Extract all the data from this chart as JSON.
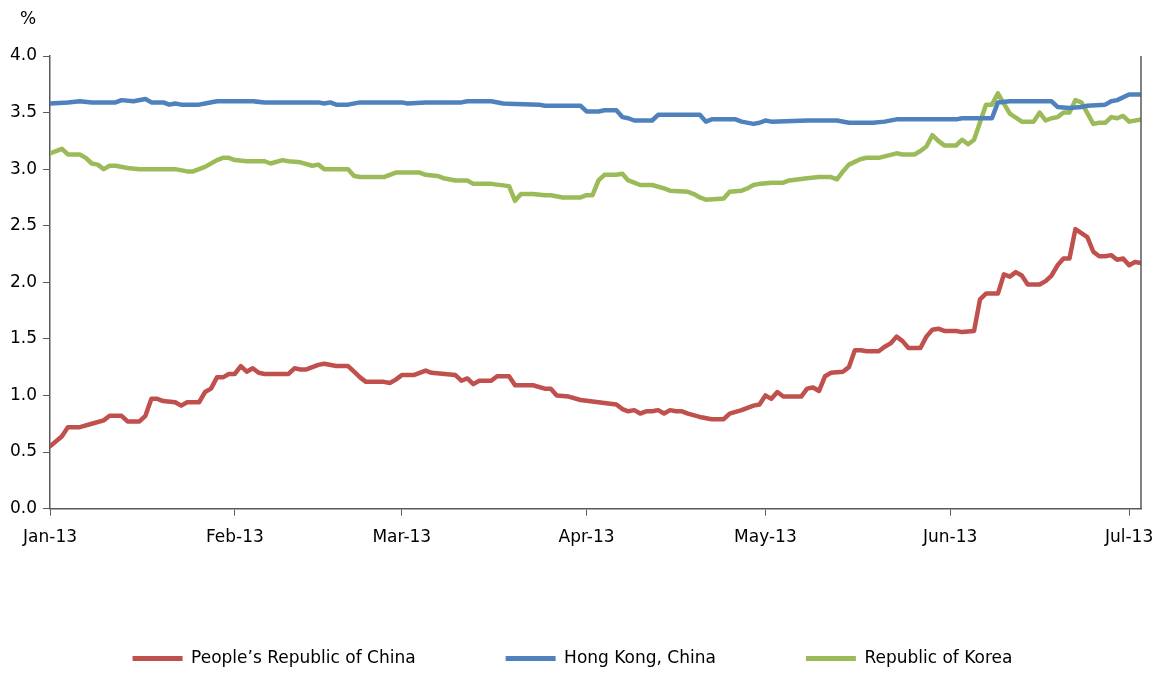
{
  "chart_data": {
    "type": "line",
    "ylabel": "%",
    "xlim": [
      "2013-01-01",
      "2013-07-03"
    ],
    "xticks": [
      {
        "value": "2013-01",
        "label": "Jan-13"
      },
      {
        "value": "2013-02",
        "label": "Feb-13"
      },
      {
        "value": "2013-03",
        "label": "Mar-13"
      },
      {
        "value": "2013-04",
        "label": "Apr-13"
      },
      {
        "value": "2013-05",
        "label": "May-13"
      },
      {
        "value": "2013-06",
        "label": "Jun-13"
      },
      {
        "value": "2013-07",
        "label": "Jul-13"
      }
    ],
    "ylim": [
      0,
      4
    ],
    "yticks": [
      {
        "value": 0,
        "label": "0.0"
      },
      {
        "value": 0.5,
        "label": "0.5"
      },
      {
        "value": 1,
        "label": "1.0"
      },
      {
        "value": 1.5,
        "label": "1.5"
      },
      {
        "value": 2,
        "label": "2.0"
      },
      {
        "value": 2.5,
        "label": "2.5"
      },
      {
        "value": 3,
        "label": "3.0"
      },
      {
        "value": 3.5,
        "label": "3.5"
      },
      {
        "value": 4,
        "label": "4.0"
      }
    ],
    "grid": false,
    "legend": "bottom",
    "marker": "none",
    "line_style": "solid",
    "series": [
      {
        "name": "People’s Republic of China",
        "color": "#c0504d",
        "x": [
          "2013-01-01",
          "2013-01-03",
          "2013-01-04",
          "2013-01-06",
          "2013-01-08",
          "2013-01-10",
          "2013-01-11",
          "2013-01-13",
          "2013-01-14",
          "2013-01-16",
          "2013-01-17",
          "2013-01-18",
          "2013-01-19",
          "2013-01-20",
          "2013-01-22",
          "2013-01-23",
          "2013-01-24",
          "2013-01-26",
          "2013-01-27",
          "2013-01-28",
          "2013-01-29",
          "2013-01-30",
          "2013-01-31",
          "2013-02-01",
          "2013-02-02",
          "2013-02-03",
          "2013-02-04",
          "2013-02-05",
          "2013-02-06",
          "2013-02-10",
          "2013-02-11",
          "2013-02-12",
          "2013-02-13",
          "2013-02-15",
          "2013-02-16",
          "2013-02-18",
          "2013-02-20",
          "2013-02-21",
          "2013-02-22",
          "2013-02-23",
          "2013-02-26",
          "2013-02-27",
          "2013-02-28",
          "2013-03-01",
          "2013-03-03",
          "2013-03-05",
          "2013-03-06",
          "2013-03-10",
          "2013-03-11",
          "2013-03-12",
          "2013-03-13",
          "2013-03-14",
          "2013-03-16",
          "2013-03-17",
          "2013-03-19",
          "2013-03-20",
          "2013-03-23",
          "2013-03-25",
          "2013-03-26",
          "2013-03-27",
          "2013-03-29",
          "2013-03-31",
          "2013-04-03",
          "2013-04-06",
          "2013-04-07",
          "2013-04-08",
          "2013-04-09",
          "2013-04-10",
          "2013-04-11",
          "2013-04-12",
          "2013-04-13",
          "2013-04-14",
          "2013-04-15",
          "2013-04-16",
          "2013-04-17",
          "2013-04-18",
          "2013-04-20",
          "2013-04-22",
          "2013-04-24",
          "2013-04-25",
          "2013-04-27",
          "2013-04-28",
          "2013-04-29",
          "2013-04-30",
          "2013-05-01",
          "2013-05-02",
          "2013-05-03",
          "2013-05-04",
          "2013-05-07",
          "2013-05-08",
          "2013-05-09",
          "2013-05-10",
          "2013-05-11",
          "2013-05-12",
          "2013-05-14",
          "2013-05-15",
          "2013-05-16",
          "2013-05-17",
          "2013-05-18",
          "2013-05-20",
          "2013-05-21",
          "2013-05-22",
          "2013-05-23",
          "2013-05-24",
          "2013-05-25",
          "2013-05-27",
          "2013-05-28",
          "2013-05-29",
          "2013-05-30",
          "2013-05-31",
          "2013-06-02",
          "2013-06-03",
          "2013-06-05",
          "2013-06-06",
          "2013-06-07",
          "2013-06-09",
          "2013-06-10",
          "2013-06-11",
          "2013-06-12",
          "2013-06-13",
          "2013-06-14",
          "2013-06-16",
          "2013-06-17",
          "2013-06-18",
          "2013-06-19",
          "2013-06-20",
          "2013-06-21",
          "2013-06-22",
          "2013-06-24",
          "2013-06-25",
          "2013-06-26",
          "2013-06-27",
          "2013-06-28",
          "2013-06-29",
          "2013-06-30",
          "2013-07-01",
          "2013-07-02",
          "2013-07-03"
        ],
        "values": [
          0.55,
          0.64,
          0.72,
          0.72,
          0.75,
          0.78,
          0.82,
          0.82,
          0.77,
          0.77,
          0.82,
          0.97,
          0.97,
          0.95,
          0.94,
          0.91,
          0.94,
          0.94,
          1.03,
          1.06,
          1.16,
          1.16,
          1.19,
          1.19,
          1.26,
          1.21,
          1.24,
          1.2,
          1.19,
          1.19,
          1.24,
          1.23,
          1.23,
          1.27,
          1.28,
          1.26,
          1.26,
          1.21,
          1.16,
          1.12,
          1.12,
          1.11,
          1.14,
          1.18,
          1.18,
          1.22,
          1.2,
          1.18,
          1.13,
          1.15,
          1.1,
          1.13,
          1.13,
          1.17,
          1.17,
          1.09,
          1.09,
          1.06,
          1.06,
          1.0,
          0.99,
          0.96,
          0.94,
          0.92,
          0.88,
          0.86,
          0.87,
          0.84,
          0.86,
          0.86,
          0.87,
          0.84,
          0.87,
          0.86,
          0.86,
          0.84,
          0.81,
          0.79,
          0.79,
          0.84,
          0.87,
          0.89,
          0.91,
          0.92,
          1.0,
          0.97,
          1.03,
          0.99,
          0.99,
          1.06,
          1.07,
          1.04,
          1.17,
          1.2,
          1.21,
          1.25,
          1.4,
          1.4,
          1.39,
          1.39,
          1.43,
          1.46,
          1.52,
          1.48,
          1.42,
          1.42,
          1.52,
          1.58,
          1.59,
          1.57,
          1.57,
          1.56,
          1.57,
          1.85,
          1.9,
          1.9,
          2.07,
          2.05,
          2.09,
          2.06,
          1.98,
          1.98,
          2.01,
          2.06,
          2.15,
          2.21,
          2.21,
          2.47,
          2.4,
          2.27,
          2.23,
          2.23,
          2.24,
          2.2,
          2.21,
          2.15,
          2.18,
          2.17
        ]
      },
      {
        "name": "Hong Kong, China",
        "color": "#4f81bd",
        "x": [
          "2013-01-01",
          "2013-01-04",
          "2013-01-06",
          "2013-01-08",
          "2013-01-12",
          "2013-01-13",
          "2013-01-15",
          "2013-01-17",
          "2013-01-18",
          "2013-01-20",
          "2013-01-21",
          "2013-01-22",
          "2013-01-23",
          "2013-01-26",
          "2013-01-27",
          "2013-01-29",
          "2013-02-04",
          "2013-02-06",
          "2013-02-15",
          "2013-02-16",
          "2013-02-17",
          "2013-02-18",
          "2013-02-20",
          "2013-02-22",
          "2013-03-01",
          "2013-03-02",
          "2013-03-05",
          "2013-03-11",
          "2013-03-12",
          "2013-03-16",
          "2013-03-18",
          "2013-03-24",
          "2013-03-25",
          "2013-03-31",
          "2013-04-01",
          "2013-04-03",
          "2013-04-04",
          "2013-04-06",
          "2013-04-07",
          "2013-04-08",
          "2013-04-09",
          "2013-04-12",
          "2013-04-13",
          "2013-04-20",
          "2013-04-21",
          "2013-04-22",
          "2013-04-26",
          "2013-04-27",
          "2013-04-29",
          "2013-04-30",
          "2013-05-01",
          "2013-05-02",
          "2013-05-08",
          "2013-05-13",
          "2013-05-15",
          "2013-05-19",
          "2013-05-21",
          "2013-05-23",
          "2013-06-02",
          "2013-06-03",
          "2013-06-08",
          "2013-06-09",
          "2013-06-11",
          "2013-06-18",
          "2013-06-19",
          "2013-06-21",
          "2013-06-23",
          "2013-06-24",
          "2013-06-27",
          "2013-06-28",
          "2013-06-29",
          "2013-07-01",
          "2013-07-03"
        ],
        "values": [
          3.58,
          3.59,
          3.6,
          3.59,
          3.59,
          3.61,
          3.6,
          3.62,
          3.59,
          3.59,
          3.57,
          3.58,
          3.57,
          3.57,
          3.58,
          3.6,
          3.6,
          3.59,
          3.59,
          3.58,
          3.59,
          3.57,
          3.57,
          3.59,
          3.59,
          3.58,
          3.59,
          3.59,
          3.6,
          3.6,
          3.58,
          3.57,
          3.56,
          3.56,
          3.51,
          3.51,
          3.52,
          3.52,
          3.46,
          3.45,
          3.43,
          3.43,
          3.48,
          3.48,
          3.42,
          3.44,
          3.44,
          3.42,
          3.4,
          3.41,
          3.43,
          3.42,
          3.43,
          3.43,
          3.41,
          3.41,
          3.42,
          3.44,
          3.44,
          3.45,
          3.45,
          3.59,
          3.6,
          3.6,
          3.55,
          3.54,
          3.55,
          3.56,
          3.57,
          3.6,
          3.61,
          3.66,
          3.66
        ]
      },
      {
        "name": "Republic of Korea",
        "color": "#9bbb59",
        "x": [
          "2013-01-01",
          "2013-01-03",
          "2013-01-04",
          "2013-01-06",
          "2013-01-07",
          "2013-01-08",
          "2013-01-09",
          "2013-01-10",
          "2013-01-11",
          "2013-01-12",
          "2013-01-14",
          "2013-01-16",
          "2013-01-18",
          "2013-01-20",
          "2013-01-22",
          "2013-01-24",
          "2013-01-25",
          "2013-01-27",
          "2013-01-29",
          "2013-01-30",
          "2013-01-31",
          "2013-02-01",
          "2013-02-03",
          "2013-02-06",
          "2013-02-07",
          "2013-02-09",
          "2013-02-10",
          "2013-02-12",
          "2013-02-14",
          "2013-02-15",
          "2013-02-16",
          "2013-02-20",
          "2013-02-21",
          "2013-02-22",
          "2013-02-26",
          "2013-02-27",
          "2013-02-28",
          "2013-03-04",
          "2013-03-05",
          "2013-03-07",
          "2013-03-08",
          "2013-03-10",
          "2013-03-12",
          "2013-03-13",
          "2013-03-15",
          "2013-03-16",
          "2013-03-19",
          "2013-03-20",
          "2013-03-21",
          "2013-03-23",
          "2013-03-25",
          "2013-03-26",
          "2013-03-28",
          "2013-03-31",
          "2013-04-01",
          "2013-04-02",
          "2013-04-03",
          "2013-04-04",
          "2013-04-06",
          "2013-04-07",
          "2013-04-08",
          "2013-04-09",
          "2013-04-10",
          "2013-04-12",
          "2013-04-14",
          "2013-04-15",
          "2013-04-18",
          "2013-04-19",
          "2013-04-20",
          "2013-04-21",
          "2013-04-24",
          "2013-04-25",
          "2013-04-27",
          "2013-04-28",
          "2013-04-29",
          "2013-04-30",
          "2013-05-02",
          "2013-05-04",
          "2013-05-05",
          "2013-05-08",
          "2013-05-10",
          "2013-05-12",
          "2013-05-13",
          "2013-05-14",
          "2013-05-15",
          "2013-05-17",
          "2013-05-18",
          "2013-05-20",
          "2013-05-23",
          "2013-05-24",
          "2013-05-26",
          "2013-05-27",
          "2013-05-28",
          "2013-05-29",
          "2013-05-30",
          "2013-05-31",
          "2013-06-02",
          "2013-06-03",
          "2013-06-04",
          "2013-06-05",
          "2013-06-07",
          "2013-06-08",
          "2013-06-09",
          "2013-06-10",
          "2013-06-11",
          "2013-06-13",
          "2013-06-15",
          "2013-06-16",
          "2013-06-17",
          "2013-06-18",
          "2013-06-19",
          "2013-06-20",
          "2013-06-21",
          "2013-06-22",
          "2013-06-23",
          "2013-06-25",
          "2013-06-26",
          "2013-06-27",
          "2013-06-28",
          "2013-06-29",
          "2013-06-30",
          "2013-07-01",
          "2013-07-03"
        ],
        "values": [
          3.14,
          3.18,
          3.13,
          3.13,
          3.1,
          3.05,
          3.04,
          3.0,
          3.03,
          3.03,
          3.01,
          3.0,
          3.0,
          3.0,
          3.0,
          2.98,
          2.98,
          3.02,
          3.08,
          3.1,
          3.1,
          3.08,
          3.07,
          3.07,
          3.05,
          3.08,
          3.07,
          3.06,
          3.03,
          3.04,
          3.0,
          3.0,
          2.94,
          2.93,
          2.93,
          2.95,
          2.97,
          2.97,
          2.95,
          2.94,
          2.92,
          2.9,
          2.9,
          2.87,
          2.87,
          2.87,
          2.85,
          2.72,
          2.78,
          2.78,
          2.77,
          2.77,
          2.75,
          2.75,
          2.77,
          2.77,
          2.9,
          2.95,
          2.95,
          2.96,
          2.9,
          2.88,
          2.86,
          2.86,
          2.83,
          2.81,
          2.8,
          2.78,
          2.75,
          2.73,
          2.74,
          2.8,
          2.81,
          2.83,
          2.86,
          2.87,
          2.88,
          2.88,
          2.9,
          2.92,
          2.93,
          2.93,
          2.91,
          2.98,
          3.04,
          3.09,
          3.1,
          3.1,
          3.14,
          3.13,
          3.13,
          3.16,
          3.2,
          3.3,
          3.25,
          3.21,
          3.21,
          3.26,
          3.22,
          3.26,
          3.57,
          3.57,
          3.67,
          3.58,
          3.49,
          3.42,
          3.42,
          3.5,
          3.43,
          3.45,
          3.46,
          3.5,
          3.5,
          3.61,
          3.59,
          3.4,
          3.41,
          3.41,
          3.46,
          3.45,
          3.47,
          3.42,
          3.44
        ]
      }
    ]
  }
}
